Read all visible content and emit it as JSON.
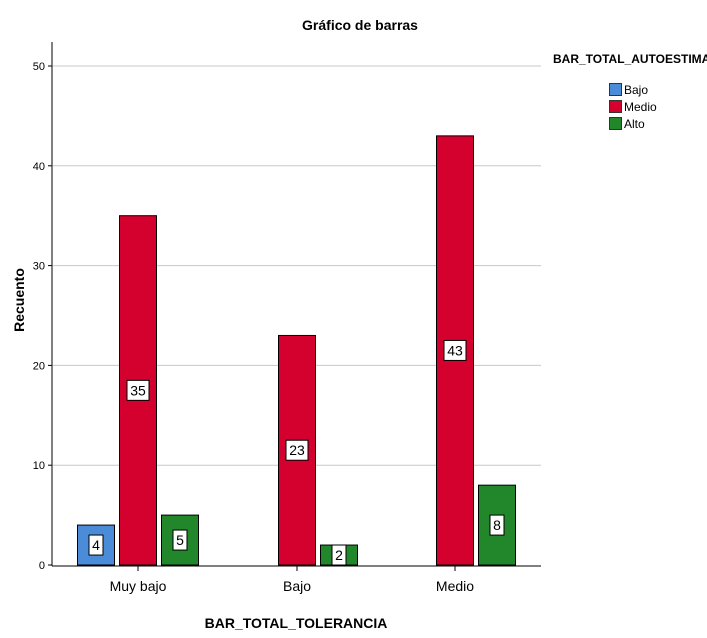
{
  "chart_data": {
    "type": "bar",
    "title": "Gráfico de barras",
    "xlabel": "BAR_TOTAL_TOLERANCIA",
    "ylabel": "Recuento",
    "ylim": [
      0,
      52
    ],
    "yticks": [
      0,
      10,
      20,
      30,
      40,
      50
    ],
    "grid": true,
    "categories": [
      "Muy bajo",
      "Bajo",
      "Medio"
    ],
    "legend_title": "BAR_TOTAL_AUTOESTIMA",
    "legend_position": "top-right",
    "series": [
      {
        "name": "Bajo",
        "color": "#4a8cd8",
        "values": [
          4,
          null,
          null
        ]
      },
      {
        "name": "Medio",
        "color": "#d4002e",
        "values": [
          35,
          23,
          43
        ]
      },
      {
        "name": "Alto",
        "color": "#22862b",
        "values": [
          5,
          2,
          8
        ]
      }
    ]
  }
}
